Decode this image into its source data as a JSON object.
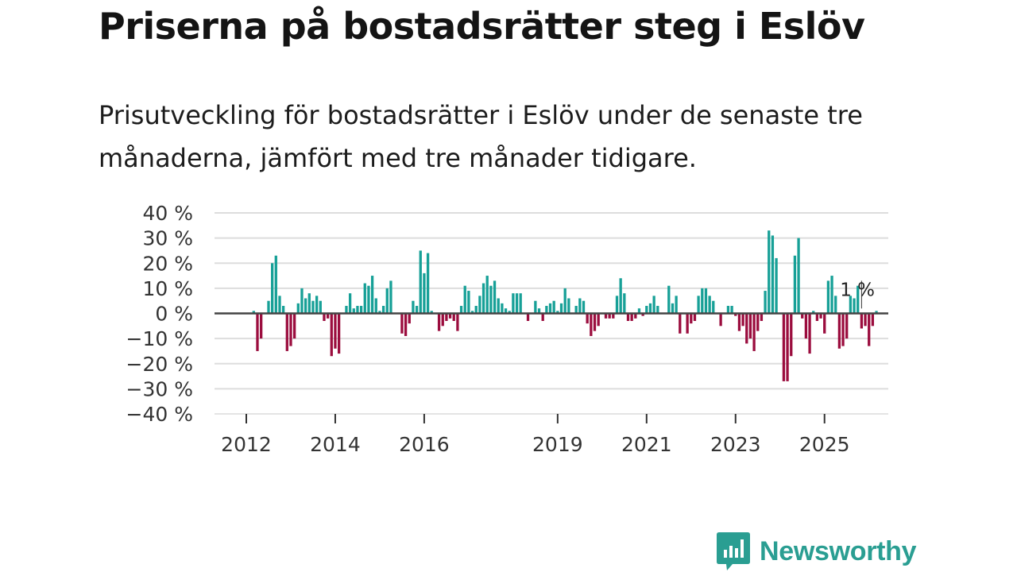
{
  "header": {
    "title": "Priserna på bostadsrätter steg i Eslöv",
    "subtitle": "Prisutveckling för bostadsrätter i Eslöv under de senaste tre månaderna, jämfört med tre månader tidigare."
  },
  "brand": {
    "name": "Newsworthy"
  },
  "colors": {
    "positive": "#17a097",
    "negative": "#9b0d3e",
    "grid": "#dddddd",
    "zero": "#444444"
  },
  "chart_data": {
    "type": "bar",
    "title": "",
    "xlabel": "",
    "ylabel": "",
    "ylim": [
      -40,
      40
    ],
    "yticks": [
      40,
      30,
      20,
      10,
      0,
      -10,
      -20,
      -30,
      -40
    ],
    "ytick_labels": [
      "40 %",
      "30 %",
      "20 %",
      "10 %",
      "0 %",
      "−10 %",
      "−20 %",
      "−30 %",
      "−40 %"
    ],
    "x_start": "2011-07",
    "xticks": [
      {
        "label": "2012",
        "month_index": 6
      },
      {
        "label": "2014",
        "month_index": 30
      },
      {
        "label": "2016",
        "month_index": 54
      },
      {
        "label": "2019",
        "month_index": 90
      },
      {
        "label": "2021",
        "month_index": 114
      },
      {
        "label": "2023",
        "month_index": 138
      },
      {
        "label": "2025",
        "month_index": 162
      }
    ],
    "annotation": {
      "text": "1 %",
      "month_index": 172,
      "value": 1
    },
    "values": [
      null,
      null,
      null,
      null,
      null,
      null,
      null,
      null,
      1,
      -15,
      -10,
      null,
      5,
      20,
      23,
      7,
      3,
      -15,
      -13,
      -10,
      4,
      10,
      6,
      8,
      5,
      7,
      5,
      -3,
      -2,
      -17,
      -14,
      -16,
      null,
      3,
      8,
      2,
      3,
      3,
      12,
      11,
      15,
      6,
      1,
      3,
      10,
      13,
      null,
      null,
      -8,
      -9,
      -4,
      5,
      3,
      25,
      16,
      24,
      1,
      null,
      -7,
      -5,
      -3,
      -2,
      -3,
      -7,
      3,
      11,
      9,
      1,
      3,
      7,
      12,
      15,
      11,
      13,
      6,
      4,
      2,
      1,
      8,
      8,
      8,
      null,
      -3,
      null,
      5,
      2,
      -3,
      3,
      4,
      5,
      1,
      4,
      10,
      6,
      null,
      3,
      6,
      5,
      -4,
      -9,
      -7,
      -5,
      null,
      -2,
      -2,
      -2,
      7,
      14,
      8,
      -3,
      -3,
      -2,
      2,
      -1,
      3,
      4,
      7,
      3,
      null,
      null,
      11,
      4,
      7,
      -8,
      null,
      -8,
      -4,
      -3,
      7,
      10,
      10,
      7,
      5,
      null,
      -5,
      null,
      3,
      3,
      -1,
      -7,
      -5,
      -12,
      -10,
      -15,
      -7,
      -3,
      9,
      33,
      31,
      22,
      null,
      -27,
      -27,
      -17,
      23,
      30,
      -2,
      -10,
      -16,
      1,
      -3,
      -2,
      -8,
      13,
      15,
      7,
      -14,
      -13,
      -10,
      7,
      6,
      11,
      -6,
      -5,
      -13,
      -5,
      1
    ]
  }
}
